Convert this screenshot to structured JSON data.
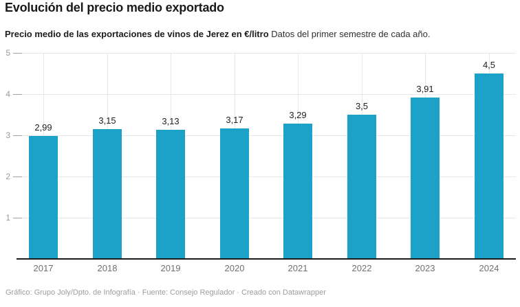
{
  "header": {
    "title": "Evolución del precio medio exportado",
    "subtitle_bold": "Precio medio de las exportaciones de vinos de Jerez en €/litro",
    "subtitle_regular": " Datos del primer semestre de cada año."
  },
  "chart_data": {
    "type": "bar",
    "title": "Evolución del precio medio exportado",
    "subtitle": "Precio medio de las exportaciones de vinos de Jerez en €/litro. Datos del primer semestre de cada año.",
    "categories": [
      "2017",
      "2018",
      "2019",
      "2020",
      "2021",
      "2022",
      "2023",
      "2024"
    ],
    "values": [
      2.99,
      3.15,
      3.13,
      3.17,
      3.29,
      3.5,
      3.91,
      4.5
    ],
    "value_labels": [
      "2,99",
      "3,15",
      "3,13",
      "3,17",
      "3,29",
      "3,5",
      "3,91",
      "4,5"
    ],
    "xlabel": "",
    "ylabel": "€/litro",
    "ylim": [
      0,
      5
    ],
    "yticks": [
      1,
      2,
      3,
      4,
      5
    ],
    "grid": true,
    "legend": "none",
    "colors": {
      "bar": "#1CA2C9",
      "gridline": "#e7e7e7",
      "tick": "#9e9e9e",
      "axis_label": "#9a9a9a",
      "baseline": "#1a1a1a",
      "value_label": "#222222",
      "category_label": "#707070"
    }
  },
  "footer": {
    "credit": "Gráfico: Grupo Joly/Dpto. de Infografía · Fuente: Consejo Regulador · Creado con Datawrapper"
  }
}
